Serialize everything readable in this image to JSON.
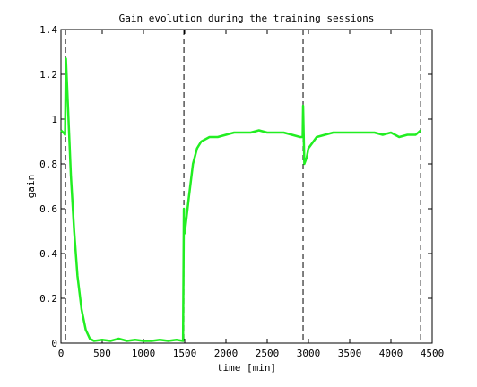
{
  "chart_data": {
    "type": "line",
    "title": "Gain evolution during the training sessions",
    "xlabel": "time [min]",
    "ylabel": "gain",
    "x": [
      0,
      30,
      50,
      60,
      80,
      120,
      160,
      200,
      250,
      300,
      350,
      400,
      500,
      600,
      700,
      800,
      900,
      1000,
      1100,
      1200,
      1300,
      1400,
      1480,
      1490,
      1500,
      1550,
      1600,
      1650,
      1700,
      1800,
      1900,
      2000,
      2100,
      2200,
      2300,
      2400,
      2500,
      2600,
      2700,
      2800,
      2900,
      2930,
      2935,
      2950,
      2980,
      3000,
      3100,
      3200,
      3300,
      3400,
      3500,
      3600,
      3700,
      3800,
      3900,
      4000,
      4100,
      4200,
      4300,
      4360
    ],
    "series": [
      {
        "name": "gain",
        "color": "#22ee22",
        "values": [
          0.95,
          0.94,
          0.93,
          1.27,
          1.1,
          0.75,
          0.5,
          0.3,
          0.15,
          0.06,
          0.02,
          0.01,
          0.015,
          0.01,
          0.02,
          0.01,
          0.015,
          0.01,
          0.01,
          0.015,
          0.01,
          0.015,
          0.01,
          0.6,
          0.49,
          0.65,
          0.8,
          0.87,
          0.9,
          0.92,
          0.92,
          0.93,
          0.94,
          0.94,
          0.94,
          0.95,
          0.94,
          0.94,
          0.94,
          0.93,
          0.92,
          0.92,
          1.06,
          0.8,
          0.83,
          0.87,
          0.92,
          0.93,
          0.94,
          0.94,
          0.94,
          0.94,
          0.94,
          0.94,
          0.93,
          0.94,
          0.92,
          0.93,
          0.93,
          0.95
        ]
      }
    ],
    "vlines": [
      55,
      1490,
      2935,
      4360
    ],
    "xlim": [
      0,
      4500
    ],
    "xticks": [
      0,
      500,
      1000,
      1500,
      2000,
      2500,
      3000,
      3500,
      4000,
      4500
    ],
    "ylim": [
      0,
      1.4
    ],
    "yticks": [
      0,
      0.2,
      0.4,
      0.6,
      0.8,
      1,
      1.2,
      1.4
    ]
  }
}
